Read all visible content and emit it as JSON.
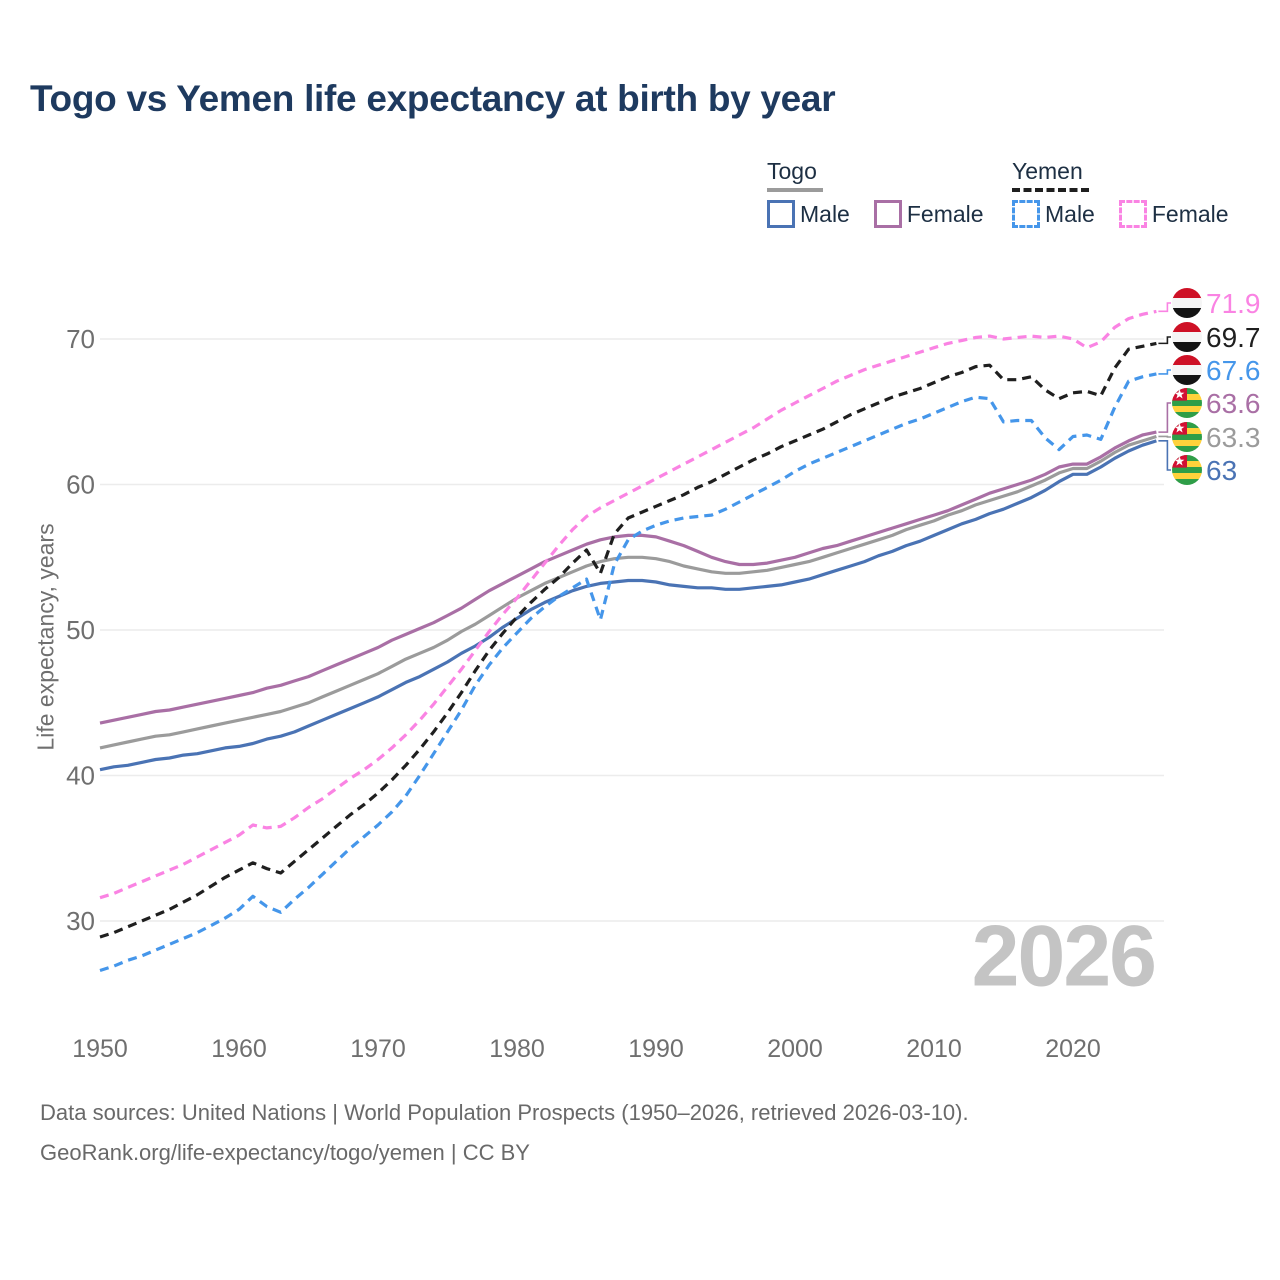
{
  "title": "Togo vs Yemen life expectancy at birth by year",
  "watermark": "2026",
  "axes": {
    "y_label": "Life expectancy, years",
    "y_ticks": [
      70,
      60,
      50,
      40,
      30
    ],
    "x_ticks": [
      1950,
      1960,
      1970,
      1980,
      1990,
      2000,
      2010,
      2020
    ]
  },
  "legend": {
    "groups": [
      {
        "country": "Togo",
        "underline_series": "Togo (both sexes)",
        "items": [
          {
            "label": "Male",
            "series": "Togo Male"
          },
          {
            "label": "Female",
            "series": "Togo Female"
          }
        ]
      },
      {
        "country": "Yemen",
        "underline_series": "Yemen (both sexes)",
        "items": [
          {
            "label": "Male",
            "series": "Yemen Male"
          },
          {
            "label": "Female",
            "series": "Yemen Female"
          }
        ]
      }
    ]
  },
  "footer": {
    "line1": "Data sources: United Nations | World Population Prospects (1950–2026, retrieved 2026-03-10).",
    "line2": "GeoRank.org/life-expectancy/togo/yemen | CC BY"
  },
  "colors": {
    "title": "#1e3a5f",
    "legend_text": "#1d2f43",
    "axis_text": "#6f6f6f",
    "grid": "#ececec",
    "watermark": "#c4c4c4",
    "footer_text": "#696969"
  },
  "flag_colors": {
    "yemen": {
      "stripes": [
        "#ce1126",
        "#f5f5f5",
        "#141414"
      ]
    },
    "togo": {
      "stripes": [
        "#2f9e48",
        "#ffd23b",
        "#2f9e48",
        "#ffd23b",
        "#2f9e48"
      ],
      "canton": "#d21034",
      "star": "#ffffff"
    }
  },
  "chart_data": {
    "type": "line",
    "title": "Togo vs Yemen life expectancy at birth by year",
    "xlabel": "year",
    "ylabel": "Life expectancy, years",
    "xlim": [
      1950,
      2026
    ],
    "ylim": [
      26,
      72
    ],
    "grid": "horizontal",
    "years": [
      1950,
      1951,
      1952,
      1953,
      1954,
      1955,
      1956,
      1957,
      1958,
      1959,
      1960,
      1961,
      1962,
      1963,
      1964,
      1965,
      1966,
      1967,
      1968,
      1969,
      1970,
      1971,
      1972,
      1973,
      1974,
      1975,
      1976,
      1977,
      1978,
      1979,
      1980,
      1981,
      1982,
      1983,
      1984,
      1985,
      1986,
      1987,
      1988,
      1989,
      1990,
      1991,
      1992,
      1993,
      1994,
      1995,
      1996,
      1997,
      1998,
      1999,
      2000,
      2001,
      2002,
      2003,
      2004,
      2005,
      2006,
      2007,
      2008,
      2009,
      2010,
      2011,
      2012,
      2013,
      2014,
      2015,
      2016,
      2017,
      2018,
      2019,
      2020,
      2021,
      2022,
      2023,
      2024,
      2025,
      2026
    ],
    "series": [
      {
        "name": "Togo (both sexes)",
        "country": "Togo",
        "sex": "both",
        "style": "solid",
        "color": "#9b9b9b",
        "end_label": "63.3",
        "values": [
          41.9,
          42.1,
          42.3,
          42.5,
          42.7,
          42.8,
          43.0,
          43.2,
          43.4,
          43.6,
          43.8,
          44.0,
          44.2,
          44.4,
          44.7,
          45.0,
          45.4,
          45.8,
          46.2,
          46.6,
          47.0,
          47.5,
          48.0,
          48.4,
          48.8,
          49.3,
          49.9,
          50.4,
          51.0,
          51.6,
          52.2,
          52.7,
          53.2,
          53.6,
          54.0,
          54.4,
          54.7,
          54.9,
          55.0,
          55.0,
          54.9,
          54.7,
          54.4,
          54.2,
          54.0,
          53.9,
          53.9,
          54.0,
          54.1,
          54.3,
          54.5,
          54.7,
          55.0,
          55.3,
          55.6,
          55.9,
          56.2,
          56.5,
          56.9,
          57.2,
          57.5,
          57.9,
          58.2,
          58.6,
          58.9,
          59.2,
          59.5,
          59.9,
          60.3,
          60.8,
          61.1,
          61.1,
          61.6,
          62.2,
          62.7,
          63.0,
          63.3
        ]
      },
      {
        "name": "Togo Female",
        "country": "Togo",
        "sex": "female",
        "style": "solid",
        "color": "#a96fa5",
        "end_label": "63.6",
        "values": [
          43.6,
          43.8,
          44.0,
          44.2,
          44.4,
          44.5,
          44.7,
          44.9,
          45.1,
          45.3,
          45.5,
          45.7,
          46.0,
          46.2,
          46.5,
          46.8,
          47.2,
          47.6,
          48.0,
          48.4,
          48.8,
          49.3,
          49.7,
          50.1,
          50.5,
          51.0,
          51.5,
          52.1,
          52.7,
          53.2,
          53.7,
          54.2,
          54.7,
          55.1,
          55.5,
          55.9,
          56.2,
          56.4,
          56.5,
          56.5,
          56.4,
          56.1,
          55.8,
          55.4,
          55.0,
          54.7,
          54.5,
          54.5,
          54.6,
          54.8,
          55.0,
          55.3,
          55.6,
          55.8,
          56.1,
          56.4,
          56.7,
          57.0,
          57.3,
          57.6,
          57.9,
          58.2,
          58.6,
          59.0,
          59.4,
          59.7,
          60.0,
          60.3,
          60.7,
          61.2,
          61.4,
          61.4,
          61.9,
          62.5,
          63.0,
          63.4,
          63.6
        ]
      },
      {
        "name": "Togo Male",
        "country": "Togo",
        "sex": "male",
        "style": "solid",
        "color": "#4a73b4",
        "end_label": "63",
        "values": [
          40.4,
          40.6,
          40.7,
          40.9,
          41.1,
          41.2,
          41.4,
          41.5,
          41.7,
          41.9,
          42.0,
          42.2,
          42.5,
          42.7,
          43.0,
          43.4,
          43.8,
          44.2,
          44.6,
          45.0,
          45.4,
          45.9,
          46.4,
          46.8,
          47.3,
          47.8,
          48.4,
          48.9,
          49.5,
          50.2,
          50.8,
          51.4,
          51.9,
          52.3,
          52.7,
          53.0,
          53.2,
          53.3,
          53.4,
          53.4,
          53.3,
          53.1,
          53.0,
          52.9,
          52.9,
          52.8,
          52.8,
          52.9,
          53.0,
          53.1,
          53.3,
          53.5,
          53.8,
          54.1,
          54.4,
          54.7,
          55.1,
          55.4,
          55.8,
          56.1,
          56.5,
          56.9,
          57.3,
          57.6,
          58.0,
          58.3,
          58.7,
          59.1,
          59.6,
          60.2,
          60.7,
          60.7,
          61.2,
          61.8,
          62.3,
          62.7,
          63.0
        ]
      },
      {
        "name": "Yemen (both sexes)",
        "country": "Yemen",
        "sex": "both",
        "style": "dashed",
        "color": "#1f1f1f",
        "end_label": "69.7",
        "values": [
          28.9,
          29.2,
          29.6,
          30.0,
          30.4,
          30.8,
          31.3,
          31.8,
          32.4,
          33.0,
          33.5,
          34.0,
          33.6,
          33.3,
          34.1,
          34.9,
          35.7,
          36.5,
          37.3,
          38.0,
          38.8,
          39.7,
          40.7,
          41.8,
          43.0,
          44.3,
          45.7,
          47.2,
          48.6,
          49.8,
          50.9,
          51.9,
          52.8,
          53.6,
          54.6,
          55.5,
          53.9,
          56.6,
          57.7,
          58.1,
          58.5,
          58.9,
          59.3,
          59.8,
          60.2,
          60.7,
          61.2,
          61.7,
          62.1,
          62.6,
          63.0,
          63.4,
          63.8,
          64.3,
          64.8,
          65.2,
          65.6,
          66.0,
          66.3,
          66.6,
          67.0,
          67.4,
          67.7,
          68.1,
          68.2,
          67.2,
          67.2,
          67.4,
          66.5,
          65.9,
          66.3,
          66.4,
          66.1,
          68.0,
          69.3,
          69.5,
          69.7
        ]
      },
      {
        "name": "Yemen Male",
        "country": "Yemen",
        "sex": "male",
        "style": "dashed",
        "color": "#4596ea",
        "end_label": "67.6",
        "values": [
          26.6,
          26.9,
          27.3,
          27.6,
          28.0,
          28.4,
          28.8,
          29.2,
          29.7,
          30.2,
          30.8,
          31.7,
          31.0,
          30.6,
          31.5,
          32.3,
          33.2,
          34.1,
          35.0,
          35.8,
          36.6,
          37.5,
          38.6,
          40.0,
          41.5,
          43.0,
          44.5,
          46.2,
          47.6,
          48.8,
          49.8,
          50.8,
          51.6,
          52.3,
          52.9,
          53.5,
          50.7,
          54.5,
          56.2,
          56.8,
          57.2,
          57.5,
          57.7,
          57.8,
          57.9,
          58.3,
          58.8,
          59.3,
          59.8,
          60.3,
          60.9,
          61.4,
          61.8,
          62.2,
          62.6,
          63.0,
          63.4,
          63.8,
          64.2,
          64.5,
          64.9,
          65.3,
          65.7,
          66.0,
          65.9,
          64.3,
          64.4,
          64.4,
          63.2,
          62.4,
          63.3,
          63.4,
          63.1,
          65.3,
          67.1,
          67.4,
          67.6
        ]
      },
      {
        "name": "Yemen Female",
        "country": "Yemen",
        "sex": "female",
        "style": "dashed",
        "color": "#fa83e3",
        "end_label": "71.9",
        "values": [
          31.6,
          31.9,
          32.3,
          32.7,
          33.1,
          33.5,
          33.9,
          34.4,
          34.9,
          35.4,
          35.9,
          36.6,
          36.4,
          36.5,
          37.1,
          37.8,
          38.4,
          39.1,
          39.8,
          40.4,
          41.1,
          41.9,
          42.8,
          43.8,
          44.9,
          46.1,
          47.3,
          48.6,
          49.9,
          51.1,
          52.2,
          53.4,
          54.6,
          55.8,
          56.9,
          57.8,
          58.4,
          58.9,
          59.4,
          59.9,
          60.4,
          60.9,
          61.4,
          61.9,
          62.4,
          62.9,
          63.4,
          63.9,
          64.5,
          65.1,
          65.6,
          66.1,
          66.6,
          67.1,
          67.5,
          67.9,
          68.2,
          68.5,
          68.8,
          69.1,
          69.4,
          69.7,
          69.9,
          70.1,
          70.2,
          70.0,
          70.1,
          70.2,
          70.1,
          70.2,
          70.0,
          69.4,
          69.8,
          70.8,
          71.4,
          71.7,
          71.9
        ]
      }
    ]
  }
}
